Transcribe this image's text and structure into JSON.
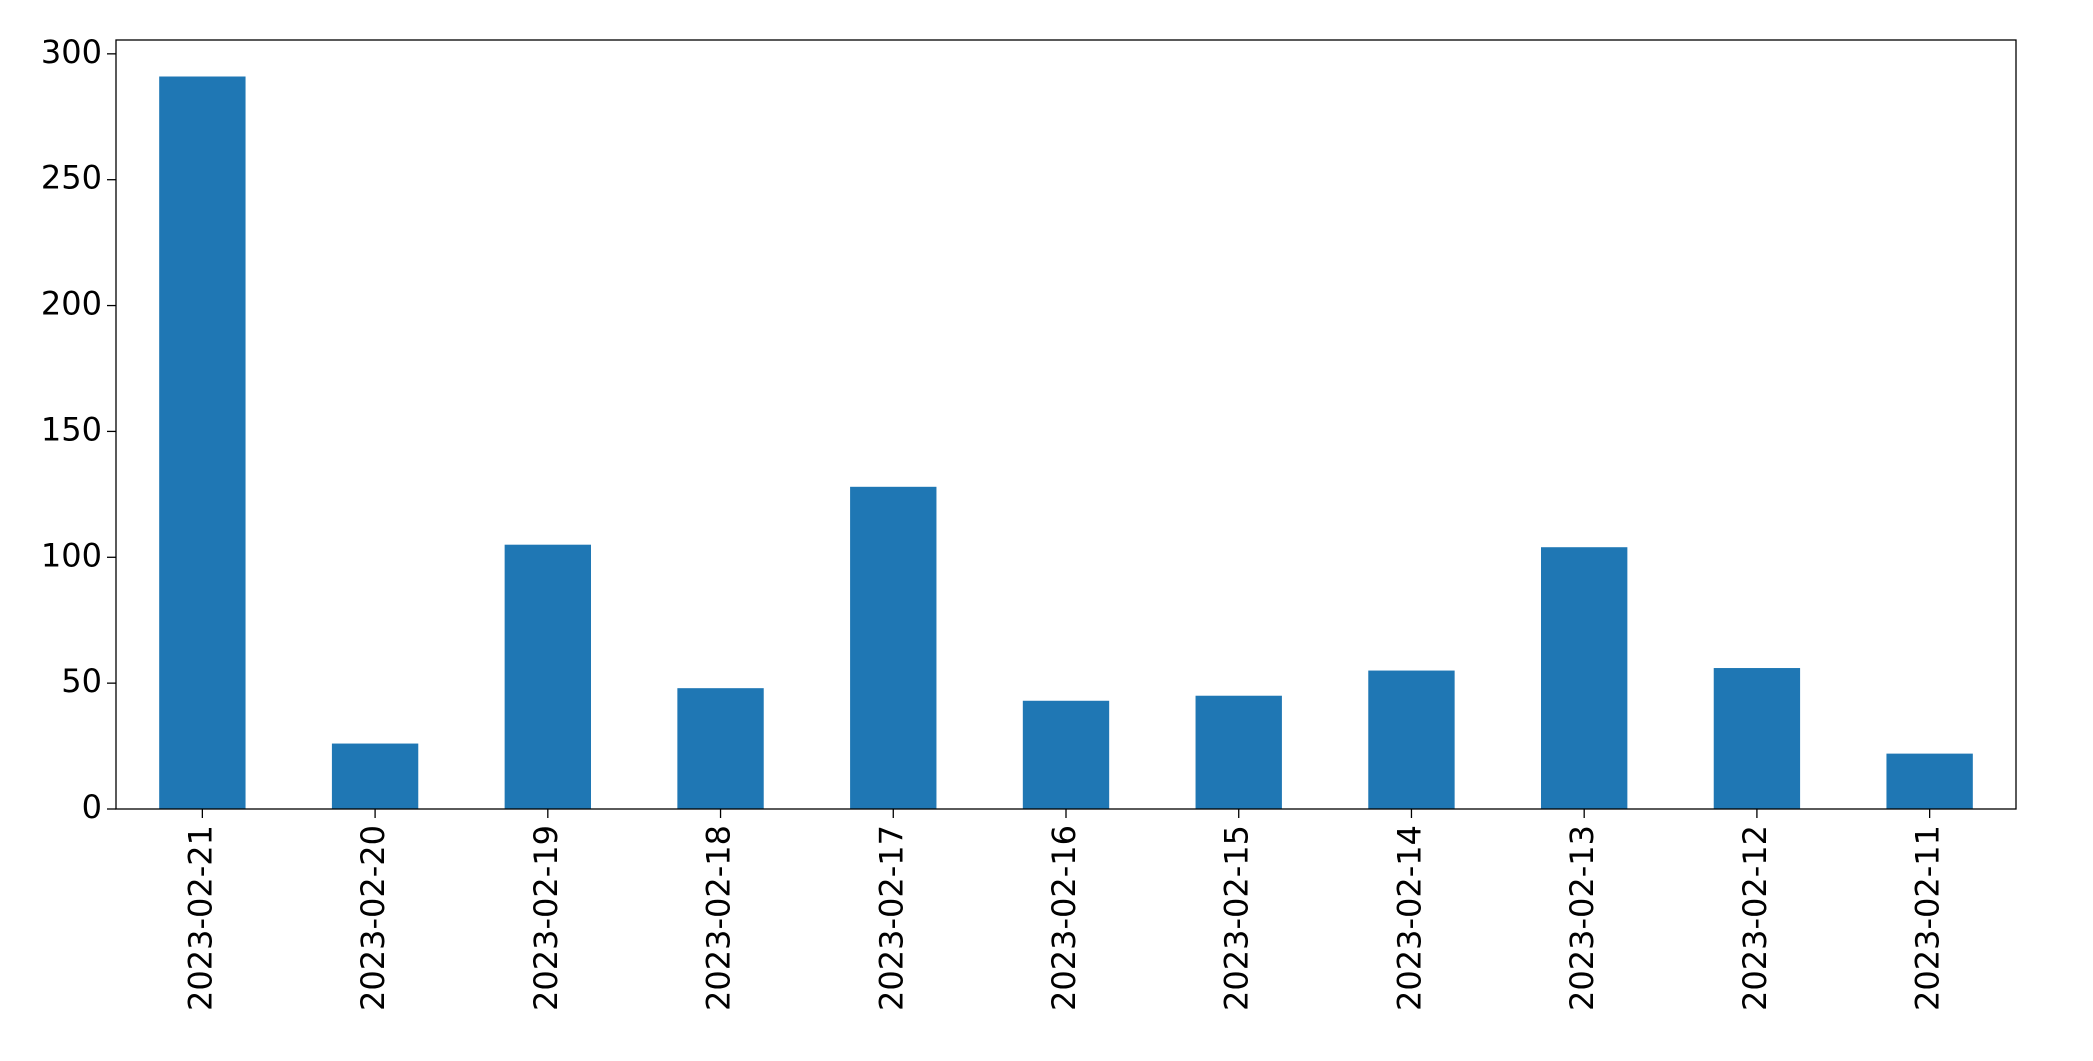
{
  "chart_data": {
    "type": "bar",
    "categories": [
      "2023-02-21",
      "2023-02-20",
      "2023-02-19",
      "2023-02-18",
      "2023-02-17",
      "2023-02-16",
      "2023-02-15",
      "2023-02-14",
      "2023-02-13",
      "2023-02-12",
      "2023-02-11"
    ],
    "values": [
      291,
      26,
      105,
      48,
      128,
      43,
      45,
      55,
      104,
      56,
      22
    ],
    "color": "#1f77b4",
    "ylim": [
      0,
      305.5
    ],
    "yticks": [
      0,
      50,
      100,
      150,
      200,
      250,
      300
    ],
    "grid": false
  }
}
